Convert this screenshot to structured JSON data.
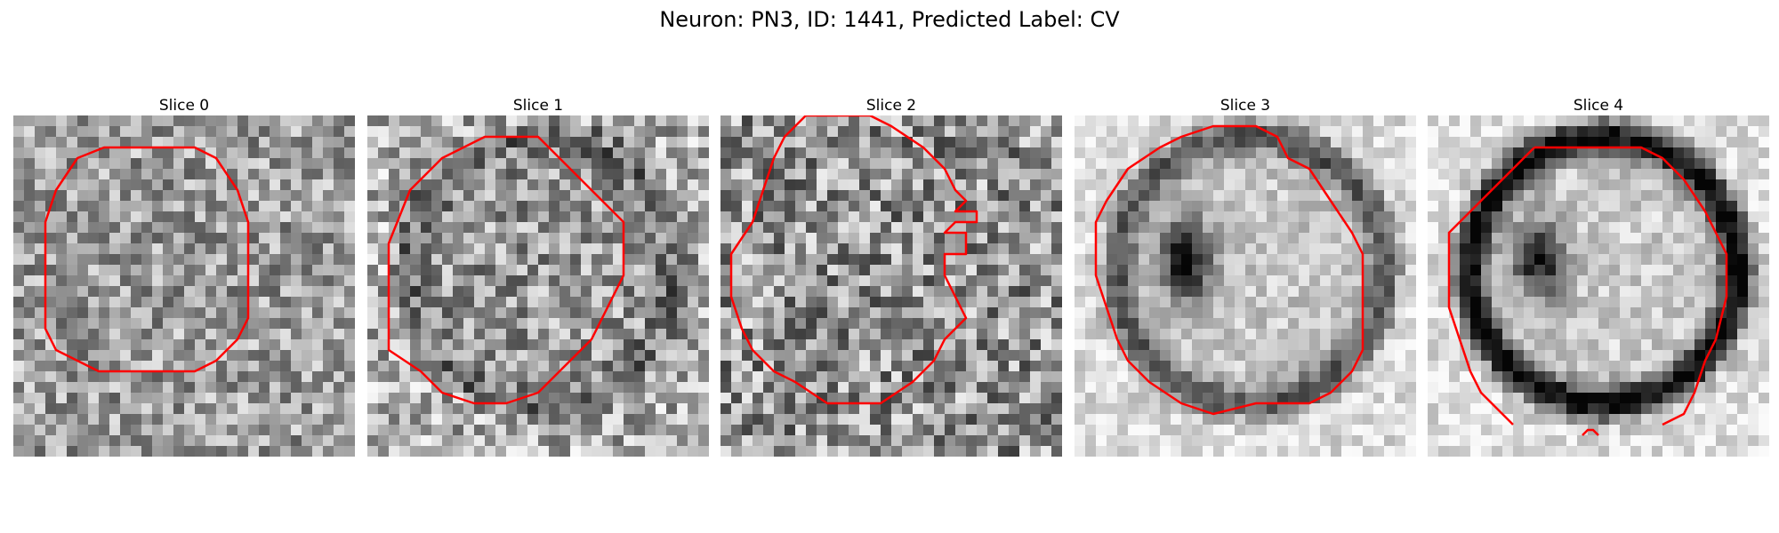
{
  "figure": {
    "title": "Neuron: PN3, ID: 1441, Predicted Label: CV"
  },
  "panels": [
    {
      "label": "Slice 0",
      "seed": 11,
      "contrast": 0.55,
      "base": 0.62,
      "dark_ring": 0.0,
      "dark_blob": 0.0
    },
    {
      "label": "Slice 1",
      "seed": 23,
      "contrast": 0.6,
      "base": 0.6,
      "dark_ring": 0.15,
      "dark_blob": 0.0
    },
    {
      "label": "Slice 2",
      "seed": 37,
      "contrast": 0.7,
      "base": 0.58,
      "dark_ring": 0.0,
      "dark_blob": 0.0
    },
    {
      "label": "Slice 3",
      "seed": 41,
      "contrast": 0.3,
      "base": 0.78,
      "dark_ring": 0.45,
      "dark_blob": 0.75
    },
    {
      "label": "Slice 4",
      "seed": 53,
      "contrast": 0.3,
      "base": 0.8,
      "dark_ring": 0.8,
      "dark_blob": 0.7
    }
  ],
  "colors": {
    "contour": "#ff0000"
  }
}
